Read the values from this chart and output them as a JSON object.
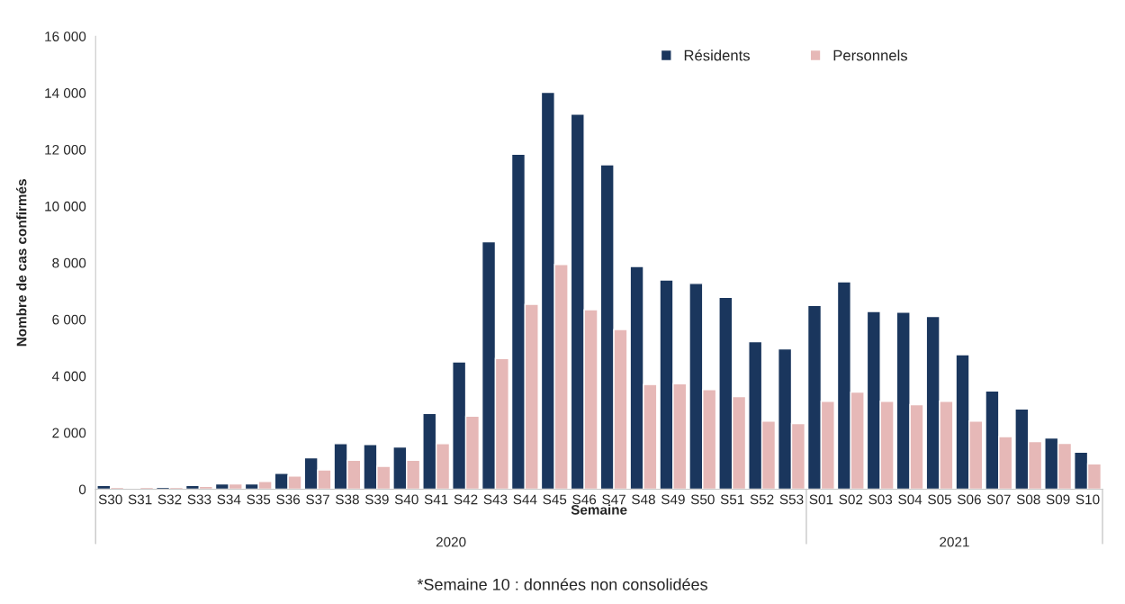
{
  "chart_data": {
    "type": "bar",
    "xlabel": "Semaine",
    "ylabel": "Nombre de cas confirmés",
    "categories": [
      "S30",
      "S31",
      "S32",
      "S33",
      "S34",
      "S35",
      "S36",
      "S37",
      "S38",
      "S39",
      "S40",
      "S41",
      "S42",
      "S43",
      "S44",
      "S45",
      "S46",
      "S47",
      "S48",
      "S49",
      "S50",
      "S51",
      "S52",
      "S53",
      "S01",
      "S02",
      "S03",
      "S04",
      "S05",
      "S06",
      "S07",
      "S08",
      "S09",
      "S10"
    ],
    "series": [
      {
        "name": "Résidents",
        "color": "#1a365d",
        "values": [
          130,
          40,
          70,
          130,
          190,
          190,
          560,
          1110,
          1610,
          1580,
          1490,
          2680,
          4500,
          8740,
          11830,
          14020,
          13250,
          11460,
          7870,
          7390,
          7270,
          6780,
          5210,
          4960,
          6490,
          7330,
          6280,
          6250,
          6100,
          4750,
          3470,
          2840,
          1810,
          1310
        ]
      },
      {
        "name": "Personnels",
        "color": "#e6b8b7",
        "values": [
          70,
          70,
          70,
          100,
          190,
          280,
          470,
          680,
          1020,
          810,
          1020,
          1610,
          2580,
          4620,
          6530,
          7940,
          6340,
          5640,
          3700,
          3730,
          3520,
          3270,
          2410,
          2320,
          3110,
          3430,
          3110,
          2990,
          3110,
          2410,
          1860,
          1680,
          1620,
          900
        ]
      }
    ],
    "ylim": [
      0,
      16000
    ],
    "yticks": [
      0,
      {
        "value": 2000,
        "label": "2 000"
      },
      {
        "value": 4000,
        "label": "4 000"
      },
      {
        "value": 6000,
        "label": "6 000"
      },
      {
        "value": 8000,
        "label": "8 000"
      },
      {
        "value": 10000,
        "label": "10 000"
      },
      {
        "value": 12000,
        "label": "12 000"
      },
      {
        "value": 14000,
        "label": "14 000"
      },
      {
        "value": 16000,
        "label": "16 000"
      }
    ],
    "grid": false,
    "legend": "top right",
    "annotations": [
      "2020",
      "2021",
      "*Semaine 10 : données non consolidées"
    ]
  }
}
